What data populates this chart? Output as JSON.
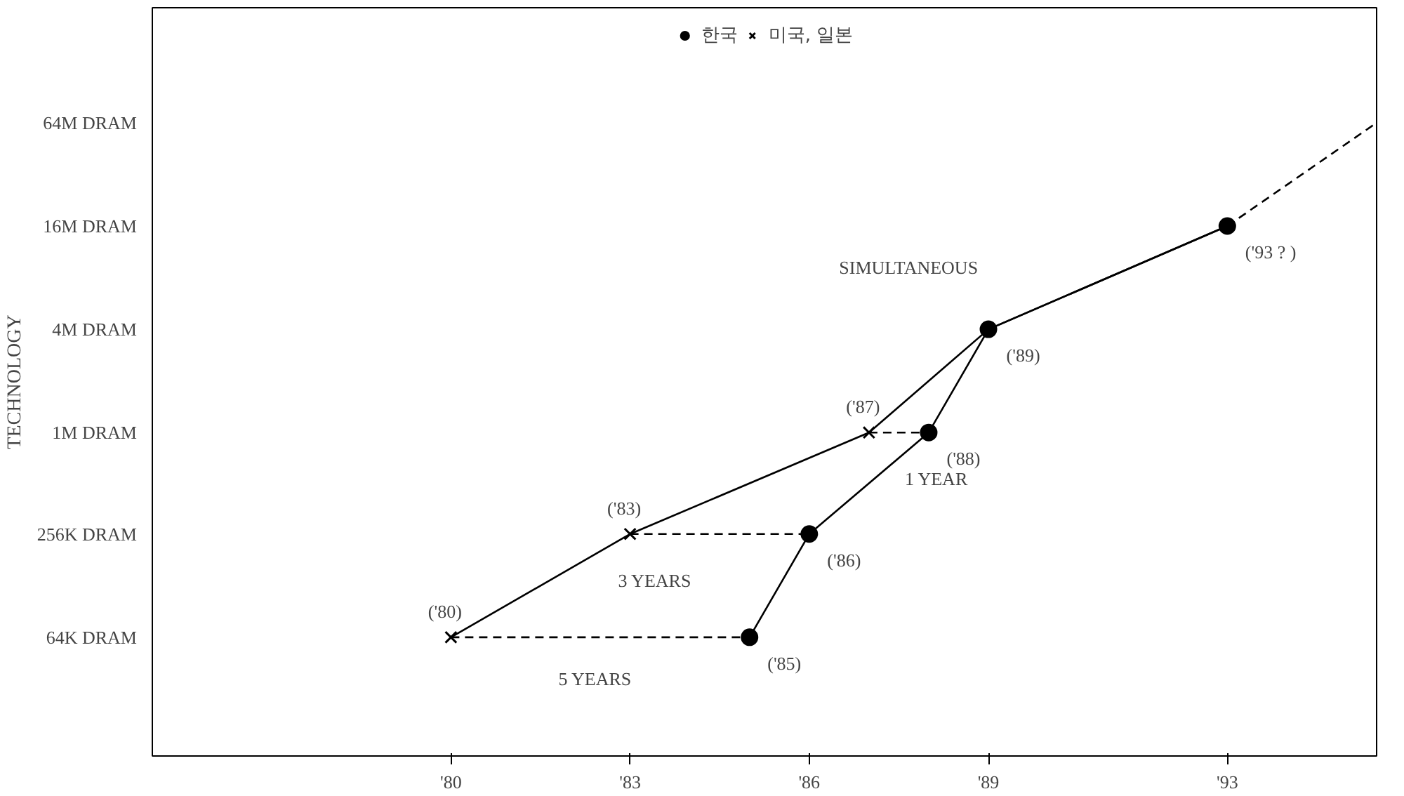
{
  "chart_data": {
    "type": "line",
    "ylabel": "TECHNOLOGY",
    "xlim": [
      1975,
      1995.5
    ],
    "xticks": [
      {
        "value": 1980,
        "label": "'80"
      },
      {
        "value": 1983,
        "label": "'83"
      },
      {
        "value": 1986,
        "label": "'86"
      },
      {
        "value": 1989,
        "label": "'89"
      },
      {
        "value": 1993,
        "label": "'93"
      }
    ],
    "log": "y",
    "ylim": [
      13000,
      300000000
    ],
    "yticks": [
      {
        "value": 64000,
        "label": "64K DRAM"
      },
      {
        "value": 256000,
        "label": "256K DRAM"
      },
      {
        "value": 1000000,
        "label": "1M DRAM"
      },
      {
        "value": 4000000,
        "label": "4M DRAM"
      },
      {
        "value": 16000000,
        "label": "16M DRAM"
      },
      {
        "value": 64000000,
        "label": "64M DRAM"
      }
    ],
    "grid": false,
    "legend": "top",
    "series": [
      {
        "name": "한국",
        "color": "#000000",
        "marker": "circle",
        "line_style": "solid",
        "x": [
          1985,
          1986,
          1988,
          1989,
          1993
        ],
        "values": [
          64000,
          256000,
          1000000,
          4000000,
          16000000
        ]
      },
      {
        "name": "미국, 일본",
        "color": "#000000",
        "marker": "cross",
        "line_style": "solid",
        "x": [
          1980,
          1983,
          1987,
          1989,
          1993
        ],
        "values": [
          64000,
          256000,
          1000000,
          4000000,
          16000000
        ]
      },
      {
        "color": "#000000",
        "marker": "none",
        "line_style": "dashed",
        "x": [
          1980,
          1985
        ],
        "values": [
          64000,
          64000
        ]
      },
      {
        "color": "#000000",
        "marker": "none",
        "line_style": "dashed",
        "x": [
          1983,
          1986
        ],
        "values": [
          256000,
          256000
        ]
      },
      {
        "color": "#000000",
        "marker": "none",
        "line_style": "dashed",
        "x": [
          1987,
          1988
        ],
        "values": [
          1000000,
          1000000
        ]
      },
      {
        "color": "#000000",
        "marker": "none",
        "line_style": "dashed",
        "x": [
          1993,
          1995.5
        ],
        "values": [
          16000000,
          64000000
        ]
      }
    ],
    "annotations": [
      {
        "text": "('80)",
        "x": 1980,
        "y": 64000
      },
      {
        "text": "('83)",
        "x": 1983,
        "y": 256000
      },
      {
        "text": "('87)",
        "x": 1987,
        "y": 1000000
      },
      {
        "text": "('85)",
        "x": 1985,
        "y": 64000
      },
      {
        "text": "('86)",
        "x": 1986,
        "y": 256000
      },
      {
        "text": "('88)",
        "x": 1988,
        "y": 1000000
      },
      {
        "text": "('89)",
        "x": 1989,
        "y": 4000000
      },
      {
        "text": "('93 ? )",
        "x": 1993,
        "y": 16000000
      },
      "5 YEARS",
      "3 YEARS",
      "1 YEAR",
      "SIMULTANEOUS"
    ]
  }
}
